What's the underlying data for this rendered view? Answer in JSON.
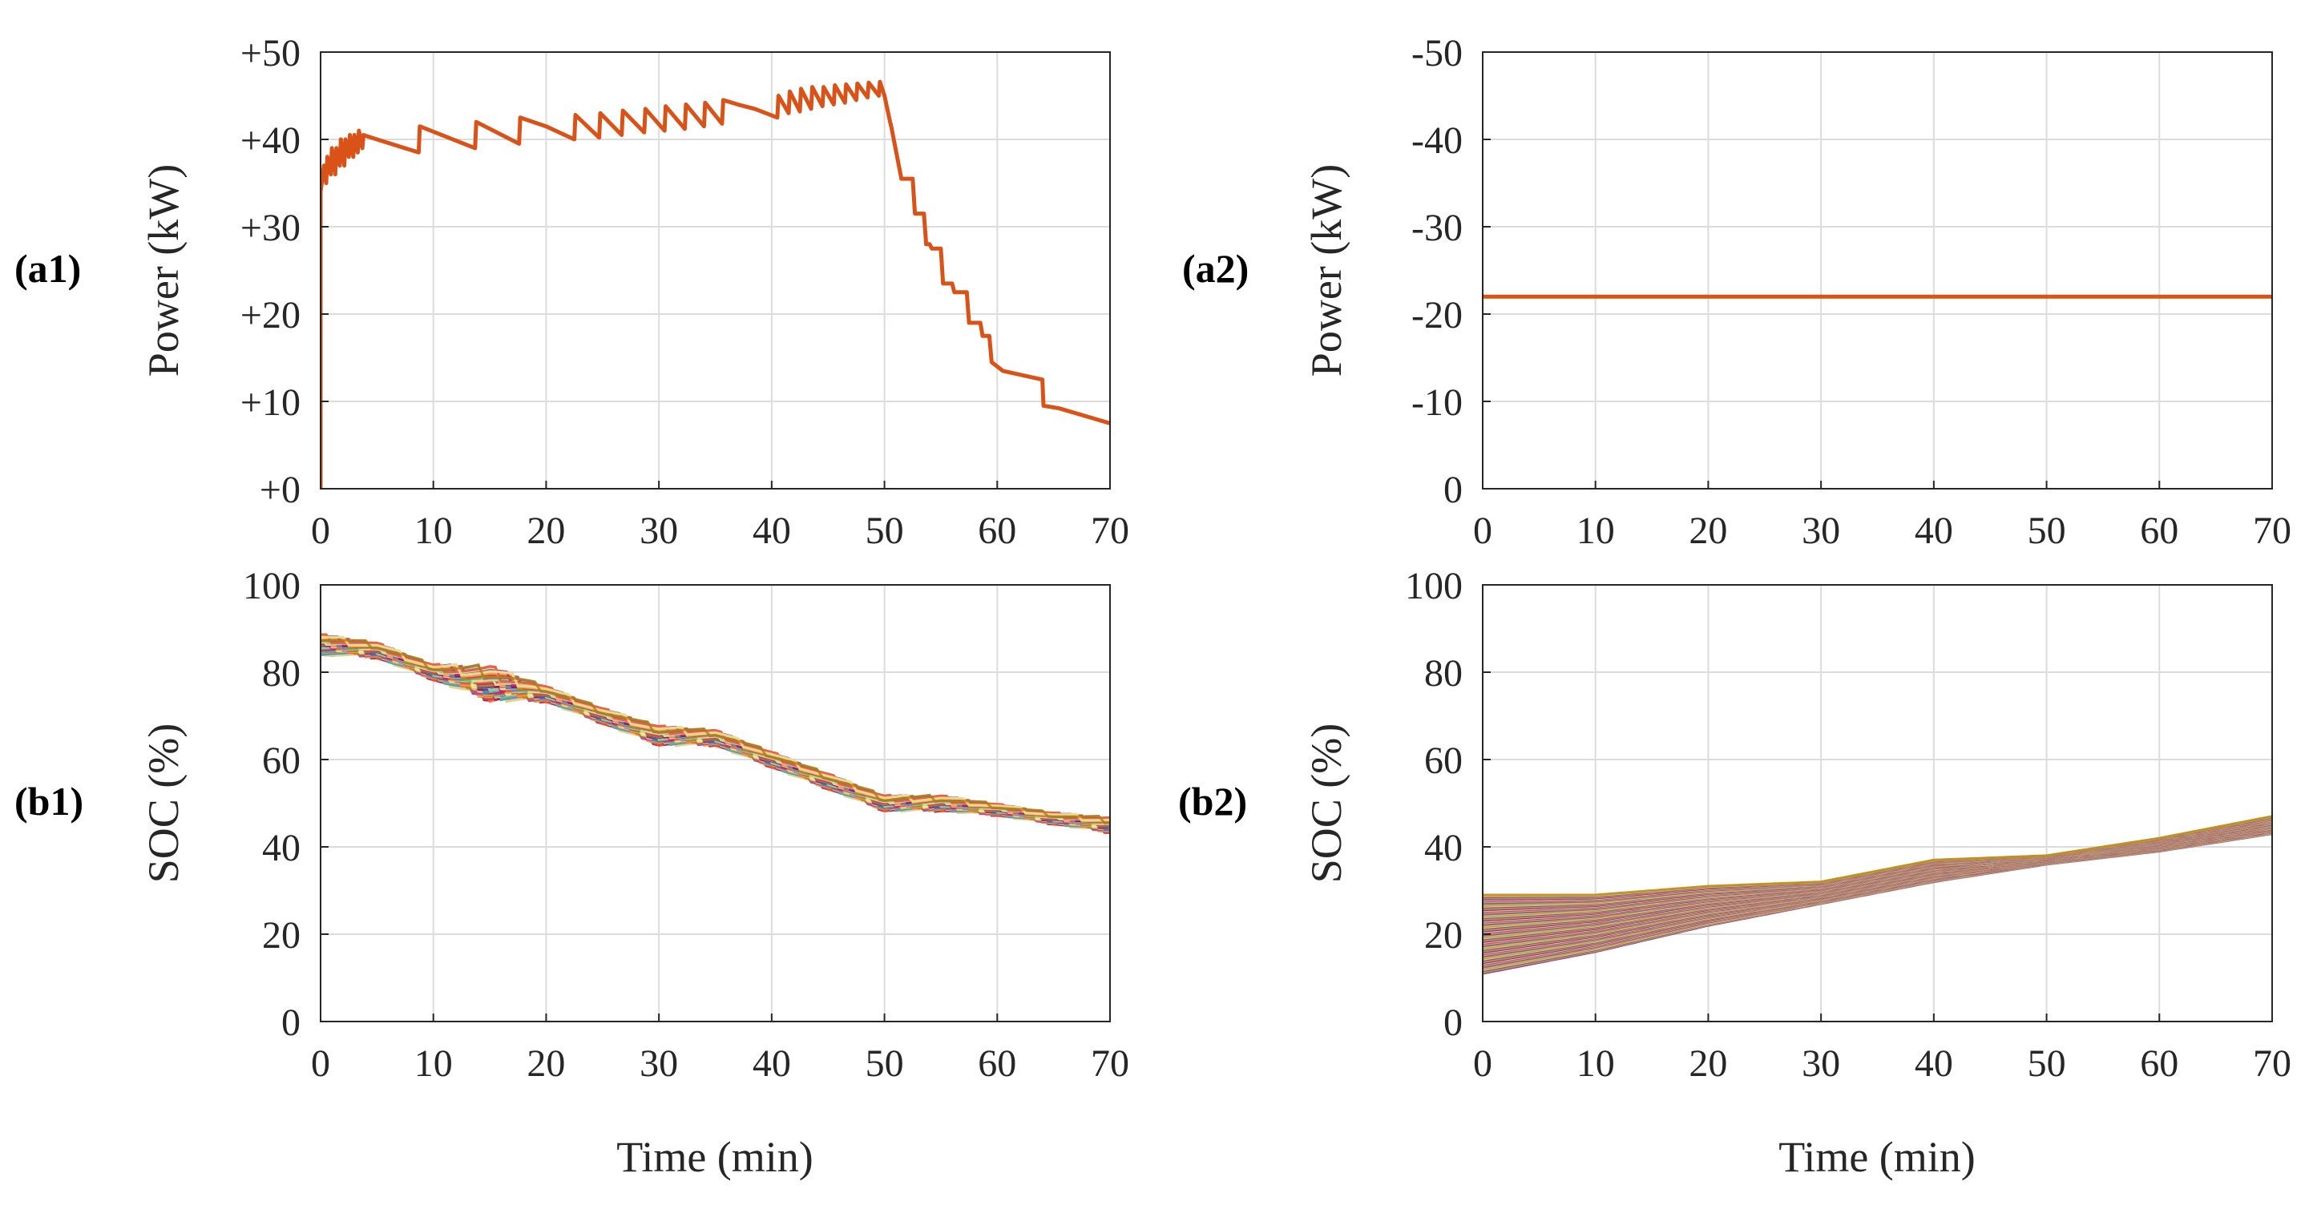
{
  "colors": {
    "power_line": "#D95319",
    "grid": "#DCDCDC",
    "axis": "#262626",
    "soc_palette": [
      "#9E0142",
      "#D53E4F",
      "#F46D43",
      "#FDAE61",
      "#FEE08B",
      "#E6F598",
      "#ABDDA4",
      "#66C2A5",
      "#3288BD",
      "#5E4FA2",
      "#C51B7D",
      "#B8860B"
    ]
  },
  "chart_data": [
    {
      "id": "a1",
      "panel_label": "(a1)",
      "type": "line",
      "ylabel": "Power (kW)",
      "xlabel": "",
      "xlim": [
        0,
        70
      ],
      "ylim": [
        0,
        50
      ],
      "x_ticks": [
        "0",
        "10",
        "20",
        "30",
        "40",
        "50",
        "60",
        "70"
      ],
      "y_ticks": [
        "+0",
        "+10",
        "+20",
        "+30",
        "+40",
        "+50"
      ],
      "grid": true,
      "series": [
        {
          "color": "#D95319",
          "x": [
            0,
            0,
            0.3,
            0.5,
            0.6,
            0.9,
            1.0,
            1.3,
            1.4,
            1.7,
            1.8,
            2.1,
            2.2,
            2.5,
            2.6,
            2.9,
            3.0,
            3.3,
            3.4,
            3.7,
            3.8,
            4.5,
            8.7,
            8.8,
            13.7,
            13.8,
            17.6,
            17.7,
            20.0,
            22.5,
            22.6,
            24.7,
            24.8,
            26.7,
            26.8,
            28.7,
            28.8,
            30.5,
            30.6,
            32.3,
            32.4,
            34.0,
            34.1,
            35.6,
            35.7,
            37.0,
            38.5,
            39.5,
            40.5,
            40.6,
            41.5,
            41.6,
            42.5,
            42.6,
            43.5,
            43.6,
            44.5,
            44.6,
            45.5,
            45.6,
            46.5,
            46.6,
            47.5,
            47.6,
            48.5,
            48.6,
            49.5,
            49.6,
            50.0,
            50.5,
            50.6,
            51.5,
            52.5,
            52.7,
            53.5,
            53.7,
            54.0,
            54.2,
            55.0,
            55.2,
            56.0,
            56.2,
            57.3,
            57.5,
            58.5,
            58.7,
            59.3,
            59.5,
            60.5,
            64.0,
            64.1,
            65.5,
            70.0
          ],
          "y": [
            0,
            34,
            37,
            35,
            38,
            36,
            39,
            36,
            39,
            37,
            40,
            37,
            40,
            38,
            40.5,
            38,
            40.5,
            38.5,
            41,
            39,
            40.5,
            40.2,
            38.5,
            41.5,
            39,
            42,
            39.5,
            42.5,
            41.5,
            40,
            42.8,
            40.2,
            43,
            40.5,
            43.3,
            40.8,
            43.5,
            41,
            43.8,
            41.2,
            44,
            41.5,
            44.2,
            41.8,
            44.5,
            44,
            43.5,
            43,
            42.5,
            45,
            43,
            45.5,
            43.2,
            45.8,
            43.5,
            46,
            43.8,
            46,
            44,
            46.2,
            44.2,
            46.3,
            44.5,
            46.4,
            44.8,
            46.5,
            45,
            46.6,
            45,
            42,
            41.5,
            35.5,
            35.5,
            31.5,
            31.5,
            28,
            28,
            27.5,
            27.5,
            23.5,
            23.5,
            22.5,
            22.5,
            19,
            19,
            17.5,
            17.5,
            14.5,
            13.5,
            12.5,
            9.5,
            9.2,
            7.5
          ]
        }
      ]
    },
    {
      "id": "a2",
      "panel_label": "(a2)",
      "type": "line",
      "ylabel": "Power (kW)",
      "xlabel": "",
      "xlim": [
        0,
        70
      ],
      "ylim": [
        0,
        -50
      ],
      "x_ticks": [
        "0",
        "10",
        "20",
        "30",
        "40",
        "50",
        "60",
        "70"
      ],
      "y_ticks": [
        "0",
        "-10",
        "-20",
        "-30",
        "-40",
        "-50"
      ],
      "grid": true,
      "series": [
        {
          "color": "#D95319",
          "x": [
            0,
            70
          ],
          "y": [
            -22,
            -22
          ]
        }
      ]
    },
    {
      "id": "b1",
      "panel_label": "(b1)",
      "type": "line",
      "ylabel": "SOC (%)",
      "xlabel": "Time (min)",
      "xlim": [
        0,
        70
      ],
      "ylim": [
        0,
        100
      ],
      "x_ticks": [
        "0",
        "10",
        "20",
        "30",
        "40",
        "50",
        "60",
        "70"
      ],
      "y_ticks": [
        "0",
        "20",
        "40",
        "60",
        "80",
        "100"
      ],
      "grid": true,
      "series_description_count": 90,
      "band_envelope": {
        "x": [
          0,
          5,
          10,
          15,
          20,
          25,
          30,
          35,
          40,
          45,
          50,
          55,
          60,
          65,
          70
        ],
        "upper": [
          89,
          87,
          82,
          82,
          77,
          72,
          68,
          67,
          62,
          57,
          52,
          52,
          50,
          48,
          47
        ],
        "lower": [
          84,
          83,
          78,
          73,
          73,
          68,
          63,
          63,
          58,
          53,
          48,
          48,
          47,
          45,
          43
        ]
      }
    },
    {
      "id": "b2",
      "panel_label": "(b2)",
      "type": "line",
      "ylabel": "SOC (%)",
      "xlabel": "Time (min)",
      "xlim": [
        0,
        70
      ],
      "ylim": [
        0,
        100
      ],
      "x_ticks": [
        "0",
        "10",
        "20",
        "30",
        "40",
        "50",
        "60",
        "70"
      ],
      "y_ticks": [
        "0",
        "20",
        "40",
        "60",
        "80",
        "100"
      ],
      "grid": true,
      "series_description_count": 90,
      "band_envelope": {
        "x": [
          0,
          10,
          20,
          30,
          40,
          50,
          60,
          70
        ],
        "upper": [
          29,
          29,
          31,
          32,
          37,
          38,
          42,
          47
        ],
        "lower": [
          11,
          16,
          22,
          27,
          32,
          36,
          39,
          43
        ]
      }
    }
  ]
}
